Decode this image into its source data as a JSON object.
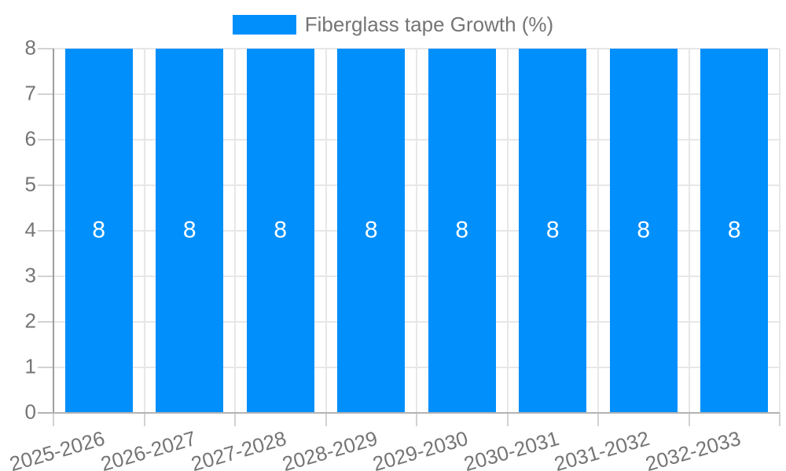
{
  "legend": {
    "label": "Fiberglass tape Growth (%)"
  },
  "chart_data": {
    "type": "bar",
    "title": "",
    "xlabel": "",
    "ylabel": "",
    "categories": [
      "2025-2026",
      "2026-2027",
      "2027-2028",
      "2028-2029",
      "2029-2030",
      "2030-2031",
      "2031-2032",
      "2032-2033"
    ],
    "series": [
      {
        "name": "Fiberglass tape Growth (%)",
        "color": "#008FFB",
        "values": [
          8,
          8,
          8,
          8,
          8,
          8,
          8,
          8
        ]
      }
    ],
    "bar_value_labels": [
      "8",
      "8",
      "8",
      "8",
      "8",
      "8",
      "8",
      "8"
    ],
    "ylim": [
      0,
      8
    ],
    "yticks": [
      "0",
      "1",
      "2",
      "3",
      "4",
      "5",
      "6",
      "7",
      "8"
    ],
    "grid": "on",
    "legend_position": "top-center"
  },
  "colors": {
    "bar": "#008FFB",
    "axis_text": "#757575",
    "bar_label_text": "#ffffff",
    "gridline": "#e7e7e7",
    "tick": "#d2d2d2",
    "y_axis_line": "#9e9e9e",
    "baseline": "#b3b3b3",
    "background": "#ffffff"
  }
}
